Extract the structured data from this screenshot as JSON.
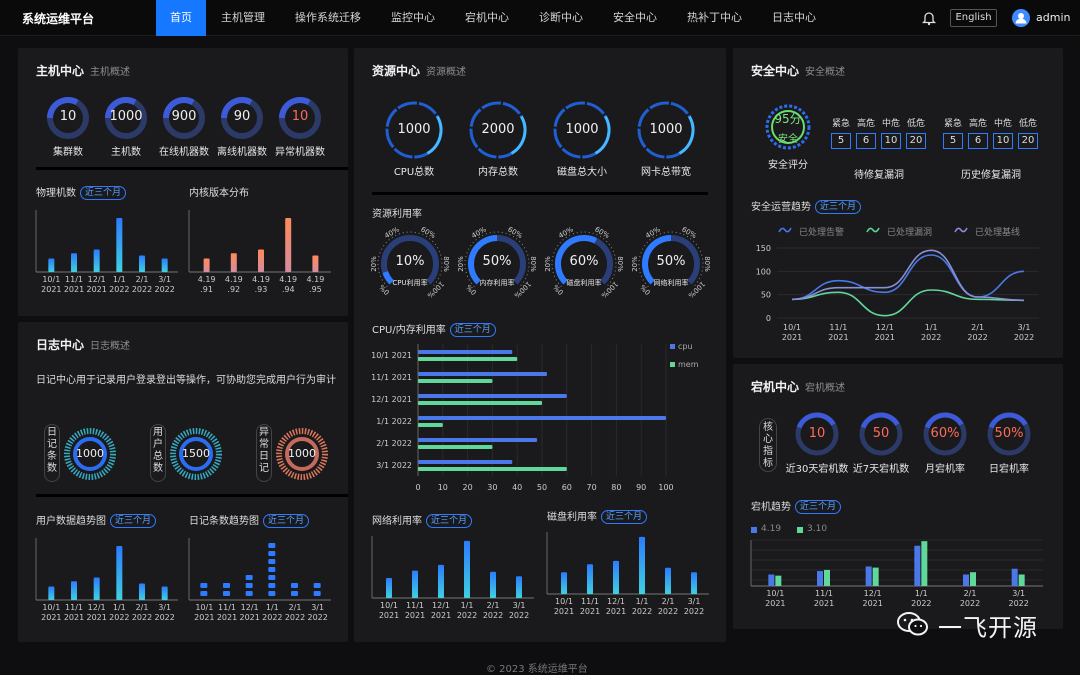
{
  "app": {
    "title": "系统运维平台",
    "footer": "© 2023 系统运维平台",
    "watermark": "一飞开源"
  },
  "nav": [
    {
      "label": "首页",
      "active": true
    },
    {
      "label": "主机管理"
    },
    {
      "label": "操作系统迁移"
    },
    {
      "label": "监控中心"
    },
    {
      "label": "宕机中心"
    },
    {
      "label": "诊断中心"
    },
    {
      "label": "安全中心"
    },
    {
      "label": "热补丁中心"
    },
    {
      "label": "日志中心"
    }
  ],
  "header": {
    "lang_button": "English",
    "username": "admin"
  },
  "pill_label": "近三个月",
  "host": {
    "title": "主机中心",
    "subtitle": "主机概述",
    "stats": [
      {
        "value": "10",
        "label": "集群数"
      },
      {
        "value": "1000",
        "label": "主机数"
      },
      {
        "value": "900",
        "label": "在线机器数"
      },
      {
        "value": "90",
        "label": "离线机器数"
      },
      {
        "value": "10",
        "label": "异常机器数",
        "alert": true
      }
    ],
    "physical_title": "物理机数",
    "kernel_title": "内核版本分布"
  },
  "log": {
    "title": "日志中心",
    "subtitle": "日志概述",
    "description": "日记中心用于记录用户登录登出等操作，可协助您完成用户行为审计",
    "gauges": [
      {
        "label": "日记条数",
        "value": "1000"
      },
      {
        "label": "用户总数",
        "value": "1500"
      },
      {
        "label": "异常日记",
        "value": "1000",
        "alert": true
      }
    ],
    "user_trend_title": "用户数据趋势图",
    "log_trend_title": "日记条数趋势图"
  },
  "resource": {
    "title": "资源中心",
    "subtitle": "资源概述",
    "totals": [
      {
        "value": "1000",
        "label": "CPU总数"
      },
      {
        "value": "2000",
        "label": "内存总数"
      },
      {
        "value": "1000",
        "label": "磁盘总大小"
      },
      {
        "value": "1000",
        "label": "网卡总带宽"
      }
    ],
    "util_title": "资源利用率",
    "gauges": [
      {
        "value": "10%",
        "label": "CPU利用率",
        "pct": 10
      },
      {
        "value": "50%",
        "label": "内存利用率",
        "pct": 50
      },
      {
        "value": "60%",
        "label": "磁盘利用率",
        "pct": 60
      },
      {
        "value": "50%",
        "label": "网络利用率",
        "pct": 50
      }
    ],
    "gauge_ticks": [
      "20%",
      "40%",
      "60%",
      "80%",
      "100%",
      "0%"
    ],
    "cpumem_title": "CPU/内存利用率",
    "net_title": "网络利用率",
    "disk_title": "磁盘利用率"
  },
  "security": {
    "title": "安全中心",
    "subtitle": "安全概述",
    "score": "95分",
    "score_label": "安全",
    "score_caption": "安全评分",
    "levels": [
      "紧急",
      "高危",
      "中危",
      "低危"
    ],
    "pending": {
      "values": [
        "5",
        "6",
        "10",
        "20"
      ],
      "label": "待修复漏洞"
    },
    "history": {
      "values": [
        "5",
        "6",
        "10",
        "20"
      ],
      "label": "历史修复漏洞"
    },
    "trend_title": "安全运营趋势"
  },
  "downtime": {
    "title": "宕机中心",
    "subtitle": "宕机概述",
    "core_label": "核心指标",
    "stats": [
      {
        "value": "10",
        "label": "近30天宕机数"
      },
      {
        "value": "50",
        "label": "近7天宕机数"
      },
      {
        "value": "60%",
        "label": "月宕机率"
      },
      {
        "value": "50%",
        "label": "日宕机率"
      }
    ],
    "trend_title": "宕机趋势"
  },
  "colors": {
    "accent": "#1677ff",
    "ring": "#2a6df0",
    "alert": "#ff6b5b",
    "cpu": "#4a78e8",
    "mem": "#5fd89a"
  },
  "chart_data": [
    {
      "id": "physical",
      "type": "bar",
      "categories": [
        "10/1\n2021",
        "11/1\n2021",
        "12/1\n2021",
        "1/1\n2022",
        "2/1\n2022",
        "3/1\n2022"
      ],
      "values": [
        18,
        25,
        30,
        72,
        22,
        18
      ]
    },
    {
      "id": "kernel",
      "type": "bar",
      "categories": [
        "4.19\n.91",
        "4.19\n.92",
        "4.19\n.93",
        "4.19\n.94",
        "4.19\n.95"
      ],
      "values": [
        18,
        25,
        30,
        72,
        22
      ]
    },
    {
      "id": "user_trend",
      "type": "bar",
      "categories": [
        "10/1\n2021",
        "11/1\n2021",
        "12/1\n2021",
        "1/1\n2022",
        "2/1\n2022",
        "3/1\n2022"
      ],
      "values": [
        18,
        25,
        30,
        72,
        22,
        18
      ]
    },
    {
      "id": "log_trend",
      "type": "bar",
      "categories": [
        "10/1\n2021",
        "11/1\n2021",
        "12/1\n2021",
        "1/1\n2022",
        "2/1\n2022",
        "3/1\n2022"
      ],
      "values": [
        18,
        25,
        30,
        72,
        22,
        18
      ]
    },
    {
      "id": "cpumem",
      "type": "bar",
      "orientation": "horizontal",
      "categories": [
        "10/1 2021",
        "11/1 2021",
        "12/1 2021",
        "1/1 2022",
        "2/1 2022",
        "3/1 2022"
      ],
      "series": [
        {
          "name": "cpu",
          "values": [
            38,
            52,
            60,
            100,
            48,
            38
          ]
        },
        {
          "name": "mem",
          "values": [
            40,
            30,
            50,
            10,
            30,
            60
          ]
        }
      ],
      "xlim": [
        0,
        100
      ],
      "xticks": [
        0,
        10,
        20,
        30,
        40,
        50,
        60,
        70,
        80,
        90,
        100
      ]
    },
    {
      "id": "network",
      "type": "bar",
      "categories": [
        "10/1\n2021",
        "11/1\n2021",
        "12/1\n2021",
        "1/1\n2022",
        "2/1\n2022",
        "3/1\n2022"
      ],
      "values": [
        35,
        48,
        58,
        100,
        46,
        38
      ]
    },
    {
      "id": "disk",
      "type": "bar",
      "categories": [
        "10/1\n2021",
        "11/1\n2021",
        "12/1\n2021",
        "1/1\n2022",
        "2/1\n2022",
        "3/1\n2022"
      ],
      "values": [
        38,
        52,
        58,
        100,
        46,
        38
      ]
    },
    {
      "id": "security_trend",
      "type": "line",
      "categories": [
        "10/1\n2021",
        "11/1\n2021",
        "12/1\n2021",
        "1/1\n2022",
        "2/1\n2022",
        "3/1\n2022"
      ],
      "ylim": [
        0,
        150
      ],
      "yticks": [
        0,
        50,
        100,
        150
      ],
      "series": [
        {
          "name": "已处理告警",
          "values": [
            40,
            80,
            55,
            135,
            45,
            100
          ]
        },
        {
          "name": "已处理漏洞",
          "values": [
            40,
            55,
            5,
            60,
            40,
            38
          ]
        },
        {
          "name": "已处理基线",
          "values": [
            40,
            65,
            65,
            145,
            45,
            38
          ]
        }
      ]
    },
    {
      "id": "downtime_trend",
      "type": "bar",
      "categories": [
        "10/1\n2021",
        "11/1\n2021",
        "12/1\n2021",
        "1/1\n2022",
        "2/1\n2022",
        "3/1\n2022"
      ],
      "series": [
        {
          "name": "4.19",
          "values": [
            10,
            13,
            17,
            35,
            10,
            15
          ]
        },
        {
          "name": "3.10",
          "values": [
            9,
            14,
            16,
            39,
            12,
            10
          ]
        }
      ]
    }
  ]
}
